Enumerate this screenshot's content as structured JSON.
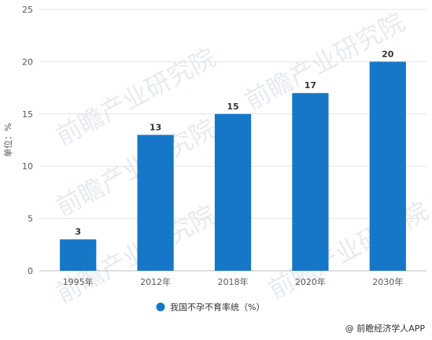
{
  "chart_data": {
    "type": "bar",
    "categories": [
      "1995年",
      "2012年",
      "2018年",
      "2020年",
      "2030年"
    ],
    "series": [
      {
        "name": "我国不孕不育率统（%）",
        "values": [
          3,
          13,
          15,
          17,
          20
        ],
        "color": "#1677c8"
      }
    ],
    "ylabel": "单位：%",
    "ylim": [
      0,
      25
    ],
    "yticks": [
      0,
      5,
      10,
      15,
      20,
      25
    ],
    "grid": true,
    "legend_position": "bottom-center",
    "data_labels": true
  },
  "watermark": {
    "text": "前瞻产业研究院"
  },
  "source": {
    "text": "@ 前瞻经济学人APP"
  }
}
